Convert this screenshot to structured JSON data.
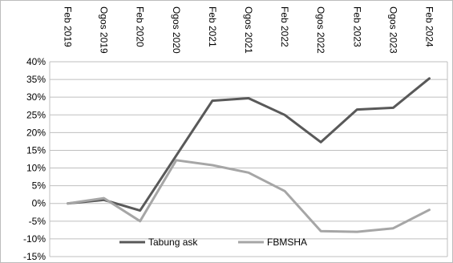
{
  "chart_data": {
    "type": "line",
    "title": "",
    "xlabel": "",
    "ylabel": "",
    "categories": [
      "Feb 2019",
      "Ogos 2019",
      "Feb 2020",
      "Ogos 2020",
      "Feb 2021",
      "Ogos 2021",
      "Feb 2022",
      "Ogos 2022",
      "Feb 2023",
      "Ogos 2023",
      "Feb 2024"
    ],
    "series": [
      {
        "name": "Tabung ask",
        "values": [
          0.0,
          1.0,
          -2.0,
          13.5,
          29.0,
          29.7,
          25.0,
          17.3,
          26.5,
          27.0,
          35.3
        ]
      },
      {
        "name": "FBMSHA",
        "values": [
          0.0,
          1.5,
          -5.0,
          12.2,
          10.8,
          8.7,
          3.5,
          -7.8,
          -8.0,
          -7.0,
          -1.8
        ]
      }
    ],
    "ylim": [
      -15,
      40
    ],
    "ytick_values": [
      40,
      35,
      30,
      25,
      20,
      15,
      10,
      5,
      0,
      -5,
      -10,
      -15
    ],
    "ytick_labels": [
      "40%",
      "35%",
      "30%",
      "25%",
      "20%",
      "15%",
      "10%",
      "5%",
      "0%",
      "-5%",
      "-10%",
      "-15%"
    ],
    "grid": true,
    "legend_position": "bottom-center",
    "colors": {
      "Tabung ask": "#595959",
      "FBMSHA": "#a6a6a6"
    }
  }
}
